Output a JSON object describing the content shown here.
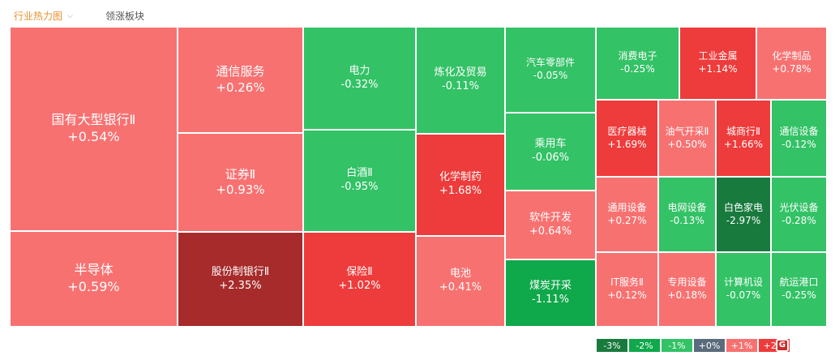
{
  "tabs": {
    "active": "行业热力图",
    "second": "领涨板块"
  },
  "colors": {
    "up1": "#f87171",
    "up2": "#ee3b3b",
    "up3": "#a72b2b",
    "dn1": "#33c266",
    "dn2": "#0fa84a",
    "dn3": "#197a3e"
  },
  "cells": [
    {
      "name": "国有大型银行Ⅱ",
      "pct": "+0.54%"
    },
    {
      "name": "半导体",
      "pct": "+0.59%"
    },
    {
      "name": "通信服务",
      "pct": "+0.26%"
    },
    {
      "name": "证券Ⅱ",
      "pct": "+0.93%"
    },
    {
      "name": "股份制银行Ⅱ",
      "pct": "+2.35%"
    },
    {
      "name": "电力",
      "pct": "-0.32%"
    },
    {
      "name": "白酒Ⅱ",
      "pct": "-0.95%"
    },
    {
      "name": "保险Ⅱ",
      "pct": "+1.02%"
    },
    {
      "name": "炼化及贸易",
      "pct": "-0.11%"
    },
    {
      "name": "化学制药",
      "pct": "+1.68%"
    },
    {
      "name": "电池",
      "pct": "+0.41%"
    },
    {
      "name": "汽车零部件",
      "pct": "-0.05%"
    },
    {
      "name": "乘用车",
      "pct": "-0.06%"
    },
    {
      "name": "软件开发",
      "pct": "+0.64%"
    },
    {
      "name": "煤炭开采",
      "pct": "-1.11%"
    },
    {
      "name": "消费电子",
      "pct": "-0.25%"
    },
    {
      "name": "工业金属",
      "pct": "+1.14%"
    },
    {
      "name": "化学制品",
      "pct": "+0.78%"
    },
    {
      "name": "医疗器械",
      "pct": "+1.69%"
    },
    {
      "name": "油气开采Ⅱ",
      "pct": "+0.50%"
    },
    {
      "name": "城商行Ⅱ",
      "pct": "+1.66%"
    },
    {
      "name": "通信设备",
      "pct": "-0.12%"
    },
    {
      "name": "通用设备",
      "pct": "+0.27%"
    },
    {
      "name": "电网设备",
      "pct": "-0.13%"
    },
    {
      "name": "白色家电",
      "pct": "-2.97%"
    },
    {
      "name": "光伏设备",
      "pct": "-0.28%"
    },
    {
      "name": "IT服务Ⅱ",
      "pct": "+0.12%"
    },
    {
      "name": "专用设备",
      "pct": "+0.18%"
    },
    {
      "name": "计算机设",
      "pct": "-0.07%"
    },
    {
      "name": "航运港口",
      "pct": "-0.25%"
    }
  ],
  "legend": [
    "-3%",
    "-2%",
    "-1%",
    "+0%",
    "+1%",
    "+2%"
  ],
  "watermark": "格隆汇"
}
